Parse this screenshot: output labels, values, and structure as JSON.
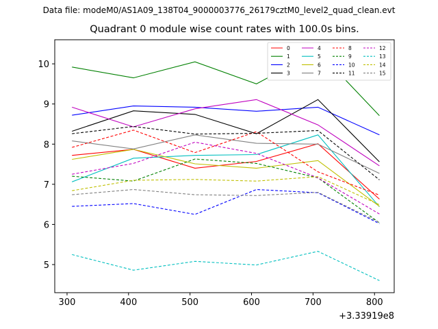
{
  "suptitle": "Data file: modeM0/AS1A09_138T04_9000003776_26179cztM0_level2_quad_clean.evt",
  "chart_data": {
    "type": "line",
    "title": "Quadrant 0 module wise count rates with 100.0s bins.",
    "xlabel": "",
    "ylabel": "",
    "x_offset_label": "+3.33919e8",
    "x": [
      308,
      408,
      508,
      608,
      708,
      808
    ],
    "xlim": [
      280,
      832
    ],
    "ylim": [
      4.3,
      10.6
    ],
    "xticks": [
      300,
      400,
      500,
      600,
      700,
      800
    ],
    "yticks": [
      5,
      6,
      7,
      8,
      9,
      10
    ],
    "grid": false,
    "legend_location": "upper-right",
    "legend_columns": 4,
    "series": [
      {
        "name": "0",
        "color": "#ff0000",
        "dash": false,
        "values": [
          7.72,
          7.87,
          7.4,
          7.57,
          8.01,
          6.63
        ]
      },
      {
        "name": "1",
        "color": "#008000",
        "dash": false,
        "values": [
          9.92,
          9.65,
          10.05,
          9.5,
          10.32,
          8.71
        ]
      },
      {
        "name": "2",
        "color": "#0000ff",
        "dash": false,
        "values": [
          8.72,
          8.95,
          8.92,
          8.82,
          8.92,
          8.23
        ]
      },
      {
        "name": "3",
        "color": "#000000",
        "dash": false,
        "values": [
          8.32,
          8.83,
          8.74,
          8.26,
          9.11,
          7.56
        ]
      },
      {
        "name": "4",
        "color": "#bf00bf",
        "dash": false,
        "values": [
          8.92,
          8.43,
          8.88,
          9.11,
          8.48,
          7.46
        ]
      },
      {
        "name": "5",
        "color": "#00bfbf",
        "dash": false,
        "values": [
          7.06,
          7.65,
          7.72,
          7.74,
          8.23,
          6.44
        ]
      },
      {
        "name": "6",
        "color": "#bfbf00",
        "dash": false,
        "values": [
          7.62,
          7.87,
          7.51,
          7.4,
          7.59,
          6.45
        ]
      },
      {
        "name": "7",
        "color": "#808080",
        "dash": false,
        "values": [
          8.08,
          7.88,
          8.23,
          8.02,
          8.0,
          7.27
        ]
      },
      {
        "name": "8",
        "color": "#ff0000",
        "dash": true,
        "values": [
          7.92,
          8.35,
          7.79,
          8.31,
          7.31,
          6.73
        ]
      },
      {
        "name": "9",
        "color": "#008000",
        "dash": true,
        "values": [
          7.2,
          7.08,
          7.63,
          7.52,
          7.16,
          6.04
        ]
      },
      {
        "name": "10",
        "color": "#0000ff",
        "dash": true,
        "values": [
          6.45,
          6.52,
          6.25,
          6.87,
          6.79,
          6.02
        ]
      },
      {
        "name": "11",
        "color": "#000000",
        "dash": true,
        "values": [
          8.26,
          8.44,
          8.25,
          8.27,
          8.34,
          7.11
        ]
      },
      {
        "name": "12",
        "color": "#bf00bf",
        "dash": true,
        "values": [
          7.25,
          7.52,
          8.05,
          7.77,
          7.16,
          6.26
        ]
      },
      {
        "name": "13",
        "color": "#00bfbf",
        "dash": true,
        "values": [
          5.25,
          4.86,
          5.08,
          4.99,
          5.33,
          4.6
        ]
      },
      {
        "name": "14",
        "color": "#bfbf00",
        "dash": true,
        "values": [
          6.84,
          7.1,
          7.12,
          7.08,
          7.19,
          6.49
        ]
      },
      {
        "name": "15",
        "color": "#808080",
        "dash": true,
        "values": [
          6.74,
          6.87,
          6.74,
          6.72,
          6.8,
          6.05
        ]
      }
    ]
  }
}
